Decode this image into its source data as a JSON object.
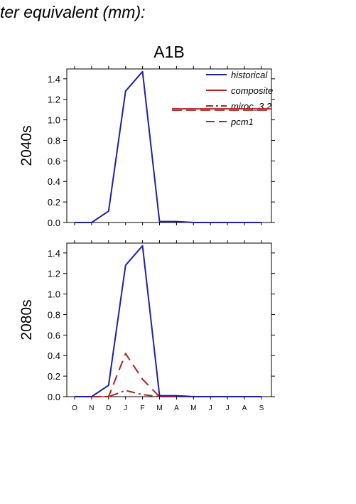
{
  "page_title": "ter equivalent (mm):",
  "scenario": "A1B",
  "colors": {
    "historical": "#1f1fa8",
    "composite": "#b22222",
    "miroc_3_2": "#b22222",
    "pcm1": "#b22222"
  },
  "chart_data": [
    {
      "type": "line",
      "panel_label": "2040s",
      "categories": [
        "O",
        "N",
        "D",
        "J",
        "F",
        "M",
        "A",
        "M",
        "J",
        "J",
        "A",
        "S"
      ],
      "ylim": [
        0,
        1.5
      ],
      "yticks": [
        "0.0",
        "0.2",
        "0.4",
        "0.6",
        "0.8",
        "1.0",
        "1.2",
        "1.4"
      ],
      "legend": {
        "placement": "top-right",
        "entries": [
          "historical",
          "composite",
          "miroc_3.2",
          "pcm1"
        ]
      },
      "series": [
        {
          "name": "historical",
          "style": "solid",
          "values": [
            0,
            0,
            0.11,
            1.28,
            1.47,
            0.01,
            0.01,
            0,
            0,
            0,
            0,
            0
          ]
        }
      ]
    },
    {
      "type": "line",
      "panel_label": "2080s",
      "categories": [
        "O",
        "N",
        "D",
        "J",
        "F",
        "M",
        "A",
        "M",
        "J",
        "J",
        "A",
        "S"
      ],
      "ylim": [
        0,
        1.5
      ],
      "yticks": [
        "0.0",
        "0.2",
        "0.4",
        "0.6",
        "0.8",
        "1.0",
        "1.2",
        "1.4"
      ],
      "series": [
        {
          "name": "historical",
          "style": "solid",
          "values": [
            0,
            0,
            0.11,
            1.28,
            1.47,
            0.01,
            0.01,
            0,
            0,
            0,
            0,
            0
          ]
        },
        {
          "name": "miroc_3.2",
          "style": "dashdot",
          "values": [
            0,
            0,
            0,
            0.06,
            0.02,
            0,
            0,
            0,
            0,
            0,
            0,
            0
          ]
        },
        {
          "name": "pcm1",
          "style": "dash",
          "values": [
            0,
            0,
            0,
            0.42,
            0.17,
            0,
            0,
            0,
            0,
            0,
            0,
            0
          ]
        }
      ]
    }
  ]
}
